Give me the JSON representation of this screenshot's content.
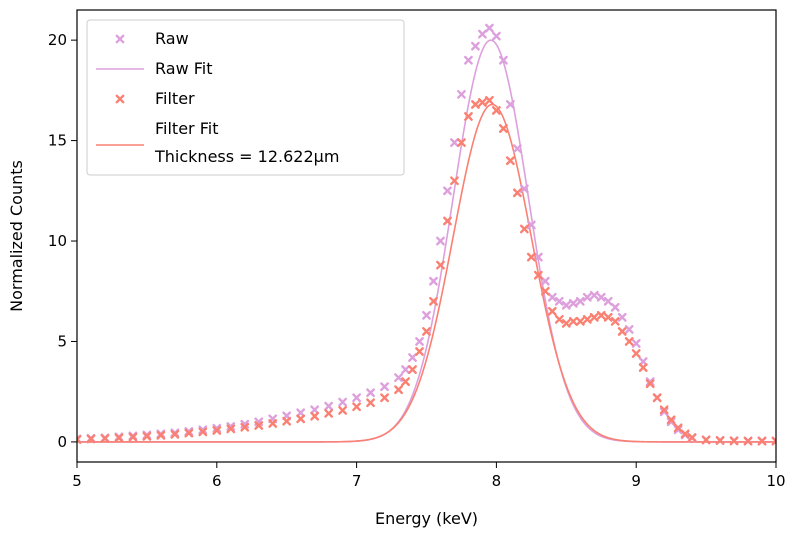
{
  "chart_data": {
    "type": "scatter",
    "xlabel": "Energy (keV)",
    "ylabel": "Normalized Counts",
    "xlim": [
      5,
      10
    ],
    "ylim": [
      -1,
      21.5
    ],
    "x_ticks": [
      5,
      6,
      7,
      8,
      9,
      10
    ],
    "y_ticks": [
      0,
      5,
      10,
      15,
      20
    ],
    "grid": false,
    "legend_position": "top-left",
    "colors": {
      "raw": "#dda0dd",
      "filter": "#fa8072"
    },
    "series": [
      {
        "name": "Raw",
        "kind": "points",
        "marker": "x",
        "color": "#dda0dd",
        "x": [
          5.0,
          5.1,
          5.2,
          5.3,
          5.4,
          5.5,
          5.6,
          5.7,
          5.8,
          5.9,
          6.0,
          6.1,
          6.2,
          6.3,
          6.4,
          6.5,
          6.6,
          6.7,
          6.8,
          6.9,
          7.0,
          7.1,
          7.2,
          7.3,
          7.35,
          7.4,
          7.45,
          7.5,
          7.55,
          7.6,
          7.65,
          7.7,
          7.75,
          7.8,
          7.85,
          7.9,
          7.95,
          8.0,
          8.05,
          8.1,
          8.15,
          8.2,
          8.25,
          8.3,
          8.35,
          8.4,
          8.45,
          8.5,
          8.55,
          8.6,
          8.65,
          8.7,
          8.75,
          8.8,
          8.85,
          8.9,
          8.95,
          9.0,
          9.05,
          9.1,
          9.15,
          9.2,
          9.25,
          9.3,
          9.35,
          9.4,
          9.5,
          9.6,
          9.7,
          9.8,
          9.9,
          10.0
        ],
        "y": [
          0.15,
          0.18,
          0.2,
          0.25,
          0.3,
          0.35,
          0.4,
          0.45,
          0.52,
          0.6,
          0.68,
          0.77,
          0.88,
          1.0,
          1.15,
          1.3,
          1.45,
          1.6,
          1.78,
          1.98,
          2.2,
          2.45,
          2.75,
          3.2,
          3.6,
          4.2,
          5.0,
          6.3,
          8.0,
          10.0,
          12.5,
          14.9,
          17.3,
          19.0,
          19.7,
          20.3,
          20.6,
          20.2,
          19.0,
          16.8,
          14.6,
          12.6,
          10.8,
          9.2,
          8.0,
          7.2,
          7.0,
          6.8,
          6.9,
          7.0,
          7.2,
          7.3,
          7.2,
          7.0,
          6.7,
          6.2,
          5.6,
          4.9,
          4.0,
          3.0,
          2.2,
          1.5,
          1.0,
          0.6,
          0.35,
          0.2,
          0.1,
          0.08,
          0.06,
          0.05,
          0.05,
          0.05
        ]
      },
      {
        "name": "Raw Fit",
        "kind": "gaussian_fit",
        "color": "#dda0dd",
        "amplitude": 20.0,
        "center": 7.96,
        "sigma": 0.27
      },
      {
        "name": "Filter",
        "kind": "points",
        "marker": "x",
        "color": "#fa8072",
        "x": [
          5.0,
          5.1,
          5.2,
          5.3,
          5.4,
          5.5,
          5.6,
          5.7,
          5.8,
          5.9,
          6.0,
          6.1,
          6.2,
          6.3,
          6.4,
          6.5,
          6.6,
          6.7,
          6.8,
          6.9,
          7.0,
          7.1,
          7.2,
          7.3,
          7.35,
          7.4,
          7.45,
          7.5,
          7.55,
          7.6,
          7.65,
          7.7,
          7.75,
          7.8,
          7.85,
          7.9,
          7.95,
          8.0,
          8.05,
          8.1,
          8.15,
          8.2,
          8.25,
          8.3,
          8.35,
          8.4,
          8.45,
          8.5,
          8.55,
          8.6,
          8.65,
          8.7,
          8.75,
          8.8,
          8.85,
          8.9,
          8.95,
          9.0,
          9.05,
          9.1,
          9.15,
          9.2,
          9.25,
          9.3,
          9.35,
          9.4,
          9.5,
          9.6,
          9.7,
          9.8,
          9.9,
          10.0
        ],
        "y": [
          0.12,
          0.15,
          0.17,
          0.2,
          0.24,
          0.28,
          0.33,
          0.38,
          0.44,
          0.5,
          0.57,
          0.65,
          0.73,
          0.82,
          0.92,
          1.03,
          1.15,
          1.28,
          1.42,
          1.57,
          1.75,
          1.95,
          2.2,
          2.6,
          3.0,
          3.6,
          4.5,
          5.5,
          7.0,
          8.8,
          11.0,
          13.0,
          14.9,
          16.2,
          16.8,
          16.9,
          17.0,
          16.5,
          15.6,
          14.0,
          12.4,
          10.6,
          9.2,
          8.3,
          7.5,
          6.5,
          6.1,
          5.9,
          6.0,
          6.0,
          6.1,
          6.2,
          6.3,
          6.2,
          6.0,
          5.5,
          5.0,
          4.4,
          3.7,
          2.9,
          2.2,
          1.6,
          1.1,
          0.7,
          0.4,
          0.22,
          0.1,
          0.07,
          0.05,
          0.04,
          0.04,
          0.04
        ]
      },
      {
        "name": "Filter Fit\nThickness = 12.622μm",
        "kind": "gaussian_fit",
        "color": "#fa8072",
        "amplitude": 16.8,
        "center": 7.97,
        "sigma": 0.28
      }
    ],
    "legend": [
      {
        "label": "Raw",
        "symbol": "x",
        "color": "#dda0dd"
      },
      {
        "label": "Raw Fit",
        "symbol": "line",
        "color": "#dda0dd"
      },
      {
        "label": "Filter",
        "symbol": "x",
        "color": "#fa8072"
      },
      {
        "label": "Filter Fit",
        "label_line2": "Thickness = 12.622μm",
        "symbol": "line",
        "color": "#fa8072"
      }
    ]
  }
}
